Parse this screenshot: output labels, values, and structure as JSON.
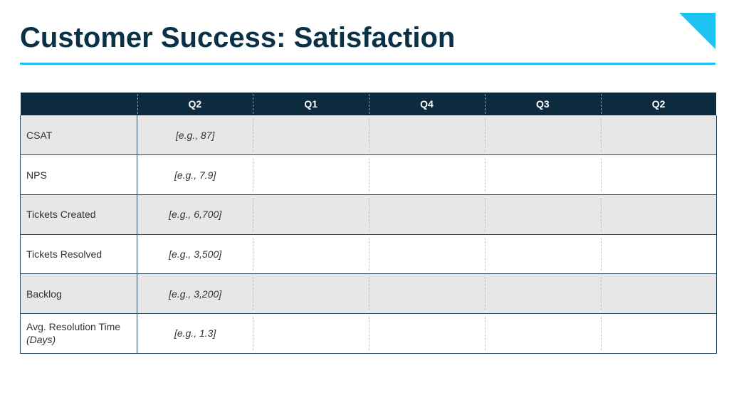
{
  "slide": {
    "title": "Customer Success: Satisfaction",
    "accent_color": "#1cc3f0",
    "header_color": "#0d2b3e",
    "title_color": "#0b3147"
  },
  "table": {
    "columns": [
      "",
      "Q2",
      "Q1",
      "Q4",
      "Q3",
      "Q2"
    ],
    "rows": [
      {
        "label": "CSAT",
        "sub": "",
        "example": "[e.g., 87]"
      },
      {
        "label": "NPS",
        "sub": "",
        "example": "[e.g., 7.9]"
      },
      {
        "label": "Tickets Created",
        "sub": "",
        "example": "[e.g., 6,700]"
      },
      {
        "label": "Tickets Resolved",
        "sub": "",
        "example": "[e.g., 3,500]"
      },
      {
        "label": "Backlog",
        "sub": "",
        "example": "[e.g., 3,200]"
      },
      {
        "label": "Avg. Resolution Time",
        "sub": "(Days)",
        "example": "[e.g., 1.3]"
      }
    ]
  }
}
